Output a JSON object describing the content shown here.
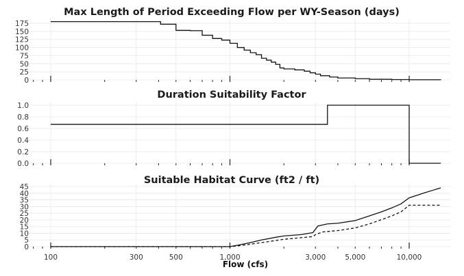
{
  "chart_data": [
    {
      "type": "line",
      "title": "Max Length of Period Exceeding Flow per WY-Season (days)",
      "x_scale": "log",
      "xlim": [
        74,
        17000
      ],
      "ylim": [
        0,
        180
      ],
      "yticks": [
        "0",
        "25",
        "50",
        "75",
        "100",
        "125",
        "150",
        "175"
      ],
      "grid": true,
      "series": [
        {
          "style": "step-solid",
          "x": [
            100,
            410,
            500,
            600,
            700,
            800,
            900,
            1000,
            1100,
            1200,
            1300,
            1400,
            1500,
            1600,
            1700,
            1800,
            1900,
            2000,
            2300,
            2600,
            2800,
            3000,
            3200,
            3600,
            4000,
            5000,
            6000,
            8000,
            10000,
            15000
          ],
          "y": [
            180,
            172,
            153,
            152,
            138,
            128,
            123,
            113,
            100,
            92,
            84,
            78,
            67,
            61,
            55,
            48,
            37,
            34,
            31,
            27,
            22,
            18,
            13,
            9,
            6,
            4,
            2,
            1,
            0.5,
            0
          ]
        }
      ]
    },
    {
      "type": "line",
      "title": "Duration Suitability Factor",
      "x_scale": "log",
      "xlim": [
        74,
        17000
      ],
      "ylim": [
        0,
        1.0
      ],
      "yticks": [
        "0.0",
        "0.2",
        "0.4",
        "0.6",
        "0.8",
        "1.0"
      ],
      "grid": true,
      "series": [
        {
          "style": "step-solid",
          "x": [
            100,
            3500,
            10000,
            15000
          ],
          "y": [
            0.67,
            1.0,
            0.0,
            0.0
          ]
        }
      ]
    },
    {
      "type": "line",
      "title": "Suitable Habitat Curve (ft2 / ft)",
      "xlabel": "Flow (cfs)",
      "x_scale": "log",
      "xlim": [
        74,
        17000
      ],
      "ylim": [
        0,
        45
      ],
      "yticks": [
        "0",
        "5",
        "10",
        "15",
        "20",
        "25",
        "30",
        "35",
        "40",
        "45"
      ],
      "xticks": [
        {
          "v": 100,
          "label": "100"
        },
        {
          "v": 300,
          "label": "300"
        },
        {
          "v": 500,
          "label": "500"
        },
        {
          "v": 1000,
          "label": "1,000"
        },
        {
          "v": 3000,
          "label": "3,000"
        },
        {
          "v": 5000,
          "label": "5,000"
        },
        {
          "v": 10000,
          "label": "10,000"
        }
      ],
      "grid": true,
      "series": [
        {
          "style": "solid",
          "x": [
            100,
            1000,
            1100,
            1300,
            1500,
            1800,
            2000,
            2500,
            2900,
            3000,
            3100,
            3500,
            4000,
            5000,
            6000,
            7000,
            8000,
            9000,
            10000,
            12000,
            15000
          ],
          "y": [
            0,
            0,
            1,
            3,
            5,
            7,
            8,
            9,
            10.5,
            13,
            15.5,
            17,
            17.5,
            19.5,
            23,
            26,
            29,
            32,
            36.5,
            40,
            44
          ]
        },
        {
          "style": "dashed",
          "x": [
            100,
            1000,
            1100,
            1500,
            2000,
            2900,
            3000,
            3300,
            4000,
            5000,
            6000,
            8000,
            9000,
            10000,
            15000
          ],
          "y": [
            0,
            0,
            0.5,
            3,
            5.5,
            7.5,
            9,
            11,
            12,
            14,
            17,
            23,
            26,
            31,
            31
          ]
        }
      ]
    }
  ]
}
